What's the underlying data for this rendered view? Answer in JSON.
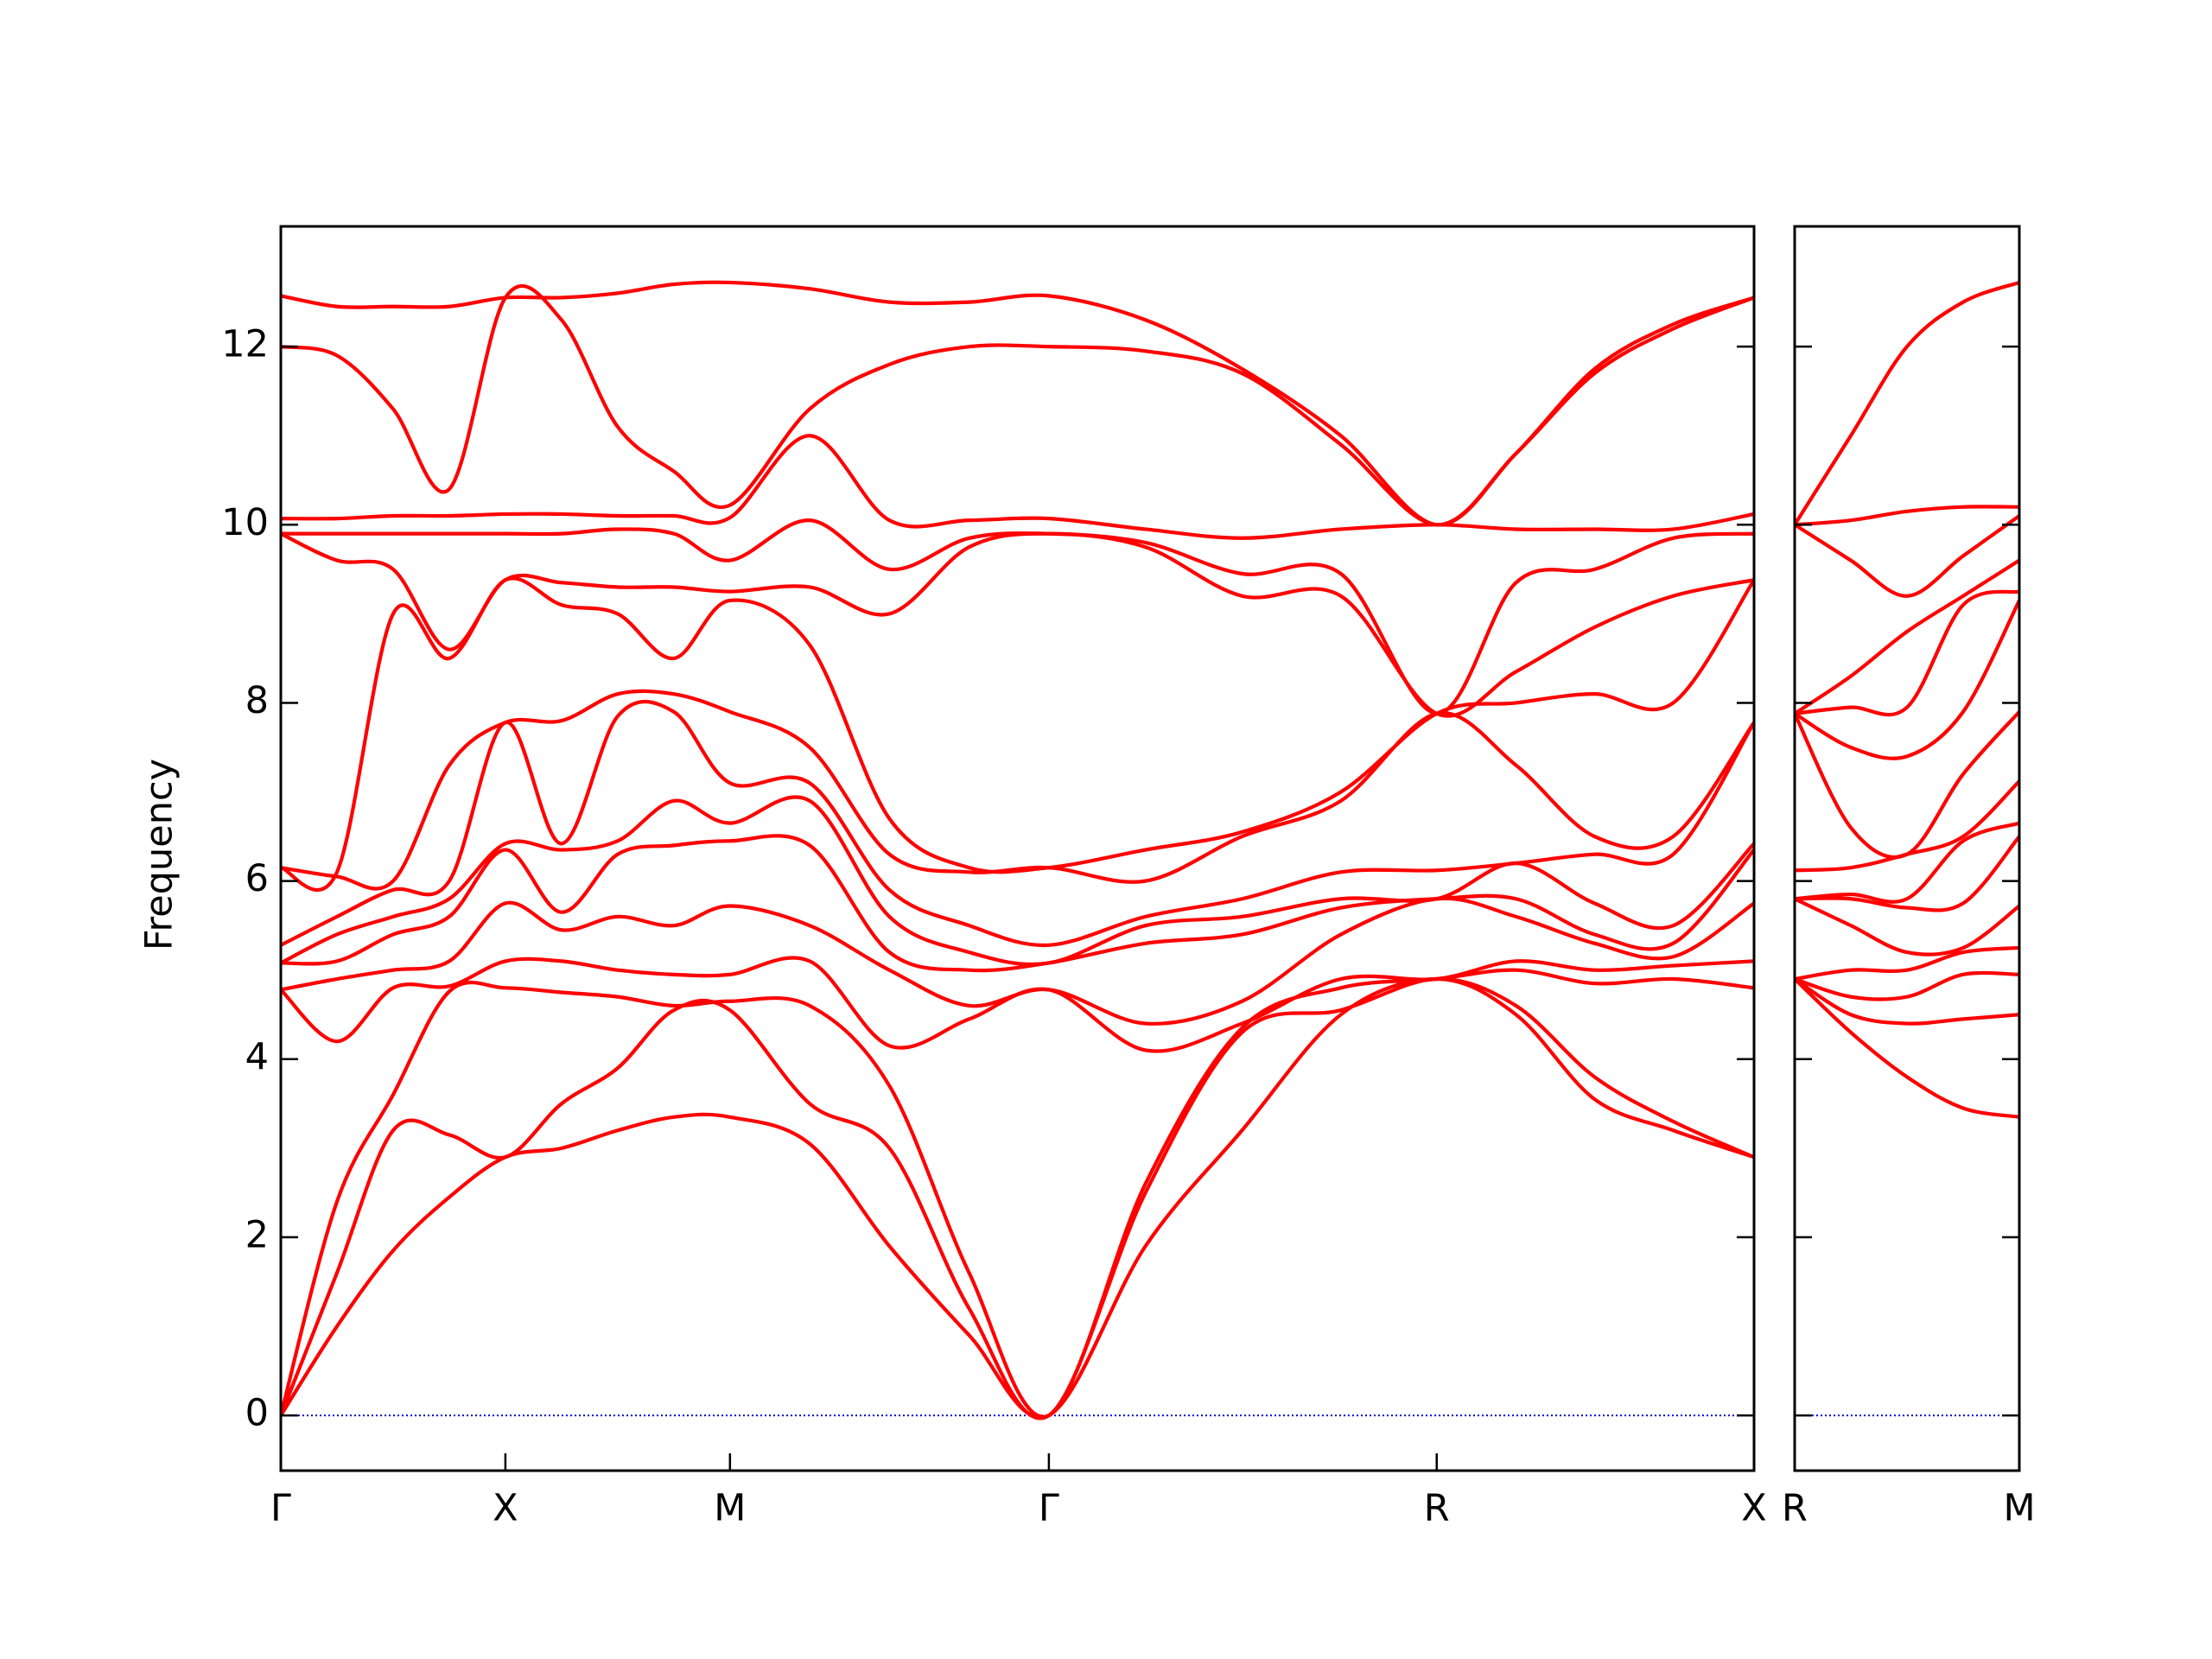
{
  "chart_data": [
    {
      "type": "line",
      "ylabel": "Frequency",
      "color": "#ff0000",
      "zero_line": 0,
      "zero_line_color": "#0000cc",
      "xlim": [
        0,
        6.56
      ],
      "ylim": [
        -0.62,
        13.35
      ],
      "xticks": [
        {
          "value": 0,
          "label": "Γ"
        },
        {
          "value": 1,
          "label": "X"
        },
        {
          "value": 2,
          "label": "M"
        },
        {
          "value": 3.42,
          "label": "Γ"
        },
        {
          "value": 5.147,
          "label": "R"
        },
        {
          "value": 6.56,
          "label": "X"
        }
      ],
      "yticks": [
        0,
        2,
        4,
        6,
        8,
        10,
        12
      ],
      "ytick_labels": true,
      "x": [
        0,
        0.25,
        0.5,
        0.75,
        1,
        1.25,
        1.5,
        1.75,
        2,
        2.355,
        2.71,
        3.065,
        3.42,
        3.85,
        4.28,
        4.72,
        5.147,
        5.5,
        5.85,
        6.2,
        6.56
      ],
      "series": [
        {
          "values": [
            0,
            1.0,
            1.85,
            2.45,
            2.9,
            3.0,
            3.2,
            3.35,
            3.35,
            3.05,
            1.9,
            0.9,
            0,
            1.9,
            3.2,
            4.5,
            4.9,
            4.5,
            3.55,
            3.2,
            2.9
          ]
        },
        {
          "values": [
            0,
            1.6,
            3.2,
            3.15,
            2.9,
            3.5,
            3.9,
            4.55,
            4.55,
            3.5,
            3.0,
            1.2,
            0,
            2.5,
            4.3,
            4.55,
            4.9,
            4.6,
            3.8,
            3.3,
            2.9
          ]
        },
        {
          "values": [
            0,
            2.4,
            3.6,
            4.76,
            4.8,
            4.75,
            4.7,
            4.6,
            4.65,
            4.6,
            3.7,
            1.6,
            0,
            2.6,
            4.35,
            4.8,
            4.9,
            5.0,
            4.85,
            4.9,
            4.8
          ]
        },
        {
          "values": [
            4.78,
            4.2,
            4.8,
            4.82,
            5.1,
            5.1,
            5.0,
            4.95,
            4.95,
            5.1,
            4.15,
            4.45,
            4.78,
            4.1,
            4.4,
            4.9,
            4.9,
            5.1,
            5.0,
            5.05,
            5.1
          ]
        },
        {
          "values": [
            4.78,
            4.9,
            5.0,
            5.1,
            5.75,
            5.45,
            5.6,
            5.5,
            5.72,
            5.5,
            5.0,
            4.6,
            4.78,
            4.4,
            4.65,
            5.4,
            5.8,
            5.6,
            5.3,
            5.15,
            5.75
          ]
        },
        {
          "values": [
            5.08,
            5.1,
            5.4,
            5.6,
            6.35,
            5.65,
            6.3,
            6.4,
            6.45,
            6.4,
            5.2,
            5.0,
            5.08,
            5.3,
            5.4,
            5.7,
            5.8,
            5.8,
            5.4,
            5.3,
            6.35
          ]
        },
        {
          "values": [
            5.08,
            5.4,
            5.6,
            5.8,
            6.42,
            6.35,
            6.45,
            6.9,
            6.65,
            6.9,
            5.6,
            5.2,
            5.08,
            5.5,
            5.6,
            5.8,
            5.8,
            6.2,
            5.75,
            5.5,
            6.42
          ]
        },
        {
          "values": [
            5.28,
            5.6,
            5.9,
            6.0,
            7.78,
            6.42,
            7.85,
            7.9,
            7.1,
            7.1,
            5.9,
            5.5,
            5.28,
            5.6,
            5.8,
            6.1,
            6.12,
            6.2,
            6.3,
            6.3,
            7.78
          ]
        },
        {
          "values": [
            6.15,
            6.05,
            6.0,
            7.3,
            7.78,
            7.8,
            8.1,
            8.1,
            7.9,
            7.5,
            6.3,
            6.1,
            6.15,
            6.0,
            6.5,
            6.9,
            7.88,
            7.3,
            6.5,
            6.5,
            7.78
          ]
        },
        {
          "values": [
            6.15,
            6.1,
            9.0,
            8.5,
            9.38,
            9.1,
            9.0,
            8.5,
            9.15,
            8.65,
            6.7,
            6.15,
            6.15,
            6.35,
            6.55,
            7.0,
            7.88,
            8.0,
            8.1,
            8.0,
            9.38
          ]
        },
        {
          "values": [
            9.9,
            9.6,
            9.5,
            8.6,
            9.38,
            9.35,
            9.3,
            9.3,
            9.25,
            9.3,
            9.0,
            9.75,
            9.9,
            9.75,
            9.2,
            9.2,
            7.88,
            8.35,
            8.85,
            9.2,
            9.38
          ]
        },
        {
          "values": [
            9.9,
            9.9,
            9.9,
            9.9,
            9.9,
            9.9,
            9.95,
            9.9,
            9.6,
            10.05,
            9.5,
            9.85,
            9.9,
            9.8,
            9.45,
            9.45,
            7.88,
            9.35,
            9.5,
            9.85,
            9.9
          ]
        },
        {
          "values": [
            10.07,
            10.07,
            10.1,
            10.1,
            10.12,
            10.12,
            10.1,
            10.1,
            10.08,
            11.0,
            10.05,
            10.05,
            10.07,
            9.95,
            9.85,
            9.95,
            10.0,
            9.95,
            9.95,
            9.95,
            10.12
          ]
        },
        {
          "values": [
            12.0,
            11.9,
            11.3,
            10.4,
            12.55,
            12.3,
            11.1,
            10.6,
            10.22,
            11.3,
            11.8,
            12.0,
            12.0,
            11.95,
            11.7,
            10.9,
            10.0,
            10.8,
            11.7,
            12.2,
            12.55
          ]
        },
        {
          "values": [
            12.57,
            12.45,
            12.45,
            12.45,
            12.55,
            12.55,
            12.6,
            12.7,
            12.72,
            12.65,
            12.5,
            12.5,
            12.57,
            12.3,
            11.75,
            11.0,
            10.0,
            10.8,
            11.75,
            12.25,
            12.55
          ]
        }
      ]
    },
    {
      "type": "line",
      "color": "#ff0000",
      "zero_line": 0,
      "zero_line_color": "#0000cc",
      "xlim": [
        0,
        1
      ],
      "ylim": [
        -0.62,
        13.35
      ],
      "xticks": [
        {
          "value": 0,
          "label": "R"
        },
        {
          "value": 1,
          "label": "M"
        }
      ],
      "yticks": [
        0,
        2,
        4,
        6,
        8,
        10,
        12
      ],
      "ytick_labels": false,
      "x": [
        0,
        0.25,
        0.5,
        0.75,
        1
      ],
      "series": [
        {
          "values": [
            4.9,
            4.3,
            3.8,
            3.45,
            3.35
          ]
        },
        {
          "values": [
            4.9,
            4.5,
            4.4,
            4.45,
            4.5
          ]
        },
        {
          "values": [
            4.9,
            4.7,
            4.7,
            4.95,
            4.95
          ]
        },
        {
          "values": [
            4.9,
            5.0,
            5.0,
            5.2,
            5.25
          ]
        },
        {
          "values": [
            5.8,
            5.5,
            5.2,
            5.25,
            5.72
          ]
        },
        {
          "values": [
            5.8,
            5.8,
            5.7,
            5.75,
            6.5
          ]
        },
        {
          "values": [
            5.8,
            5.85,
            5.8,
            6.45,
            6.65
          ]
        },
        {
          "values": [
            6.12,
            6.15,
            6.3,
            6.5,
            7.12
          ]
        },
        {
          "values": [
            7.88,
            6.6,
            6.3,
            7.2,
            7.9
          ]
        },
        {
          "values": [
            7.88,
            7.5,
            7.4,
            7.9,
            9.15
          ]
        },
        {
          "values": [
            7.88,
            7.95,
            7.95,
            9.1,
            9.25
          ]
        },
        {
          "values": [
            7.88,
            8.3,
            8.8,
            9.2,
            9.6
          ]
        },
        {
          "values": [
            10.0,
            9.6,
            9.2,
            9.65,
            10.1
          ]
        },
        {
          "values": [
            10.0,
            10.05,
            10.15,
            10.2,
            10.2
          ]
        },
        {
          "values": [
            10.0,
            11.0,
            12.0,
            12.5,
            12.72
          ]
        }
      ]
    }
  ]
}
